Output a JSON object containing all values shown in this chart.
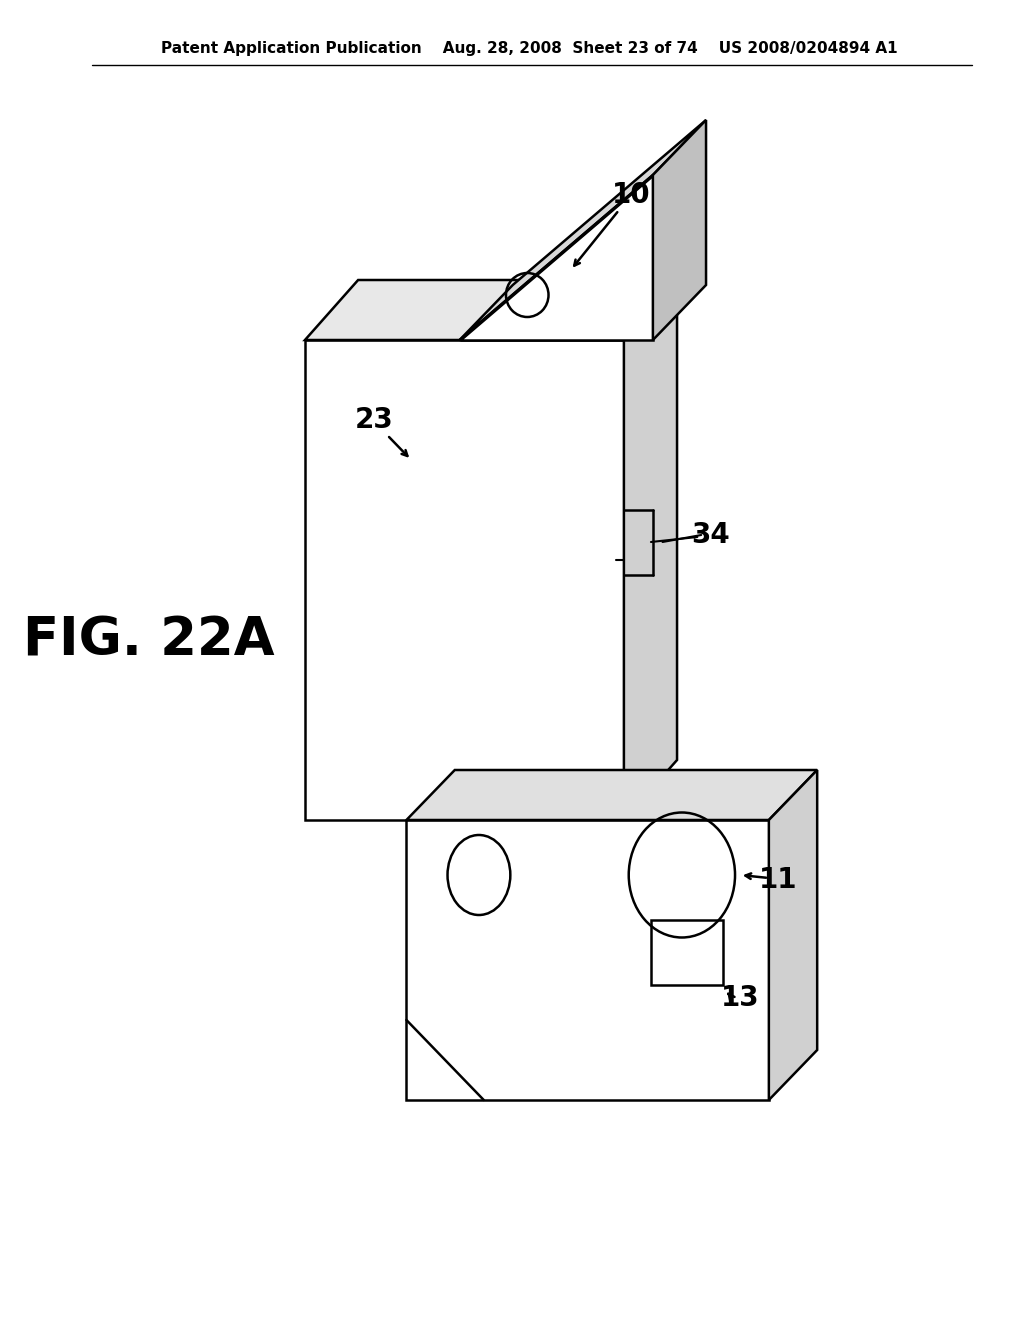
{
  "background_color": "#ffffff",
  "line_color": "#000000",
  "line_width": 1.8,
  "header_text": "Patent Application Publication    Aug. 28, 2008  Sheet 23 of 74    US 2008/0204894 A1",
  "figure_label": "FIG. 22A",
  "label_10": "10",
  "label_11": "11",
  "label_13": "13",
  "label_23": "23",
  "label_34": "34"
}
